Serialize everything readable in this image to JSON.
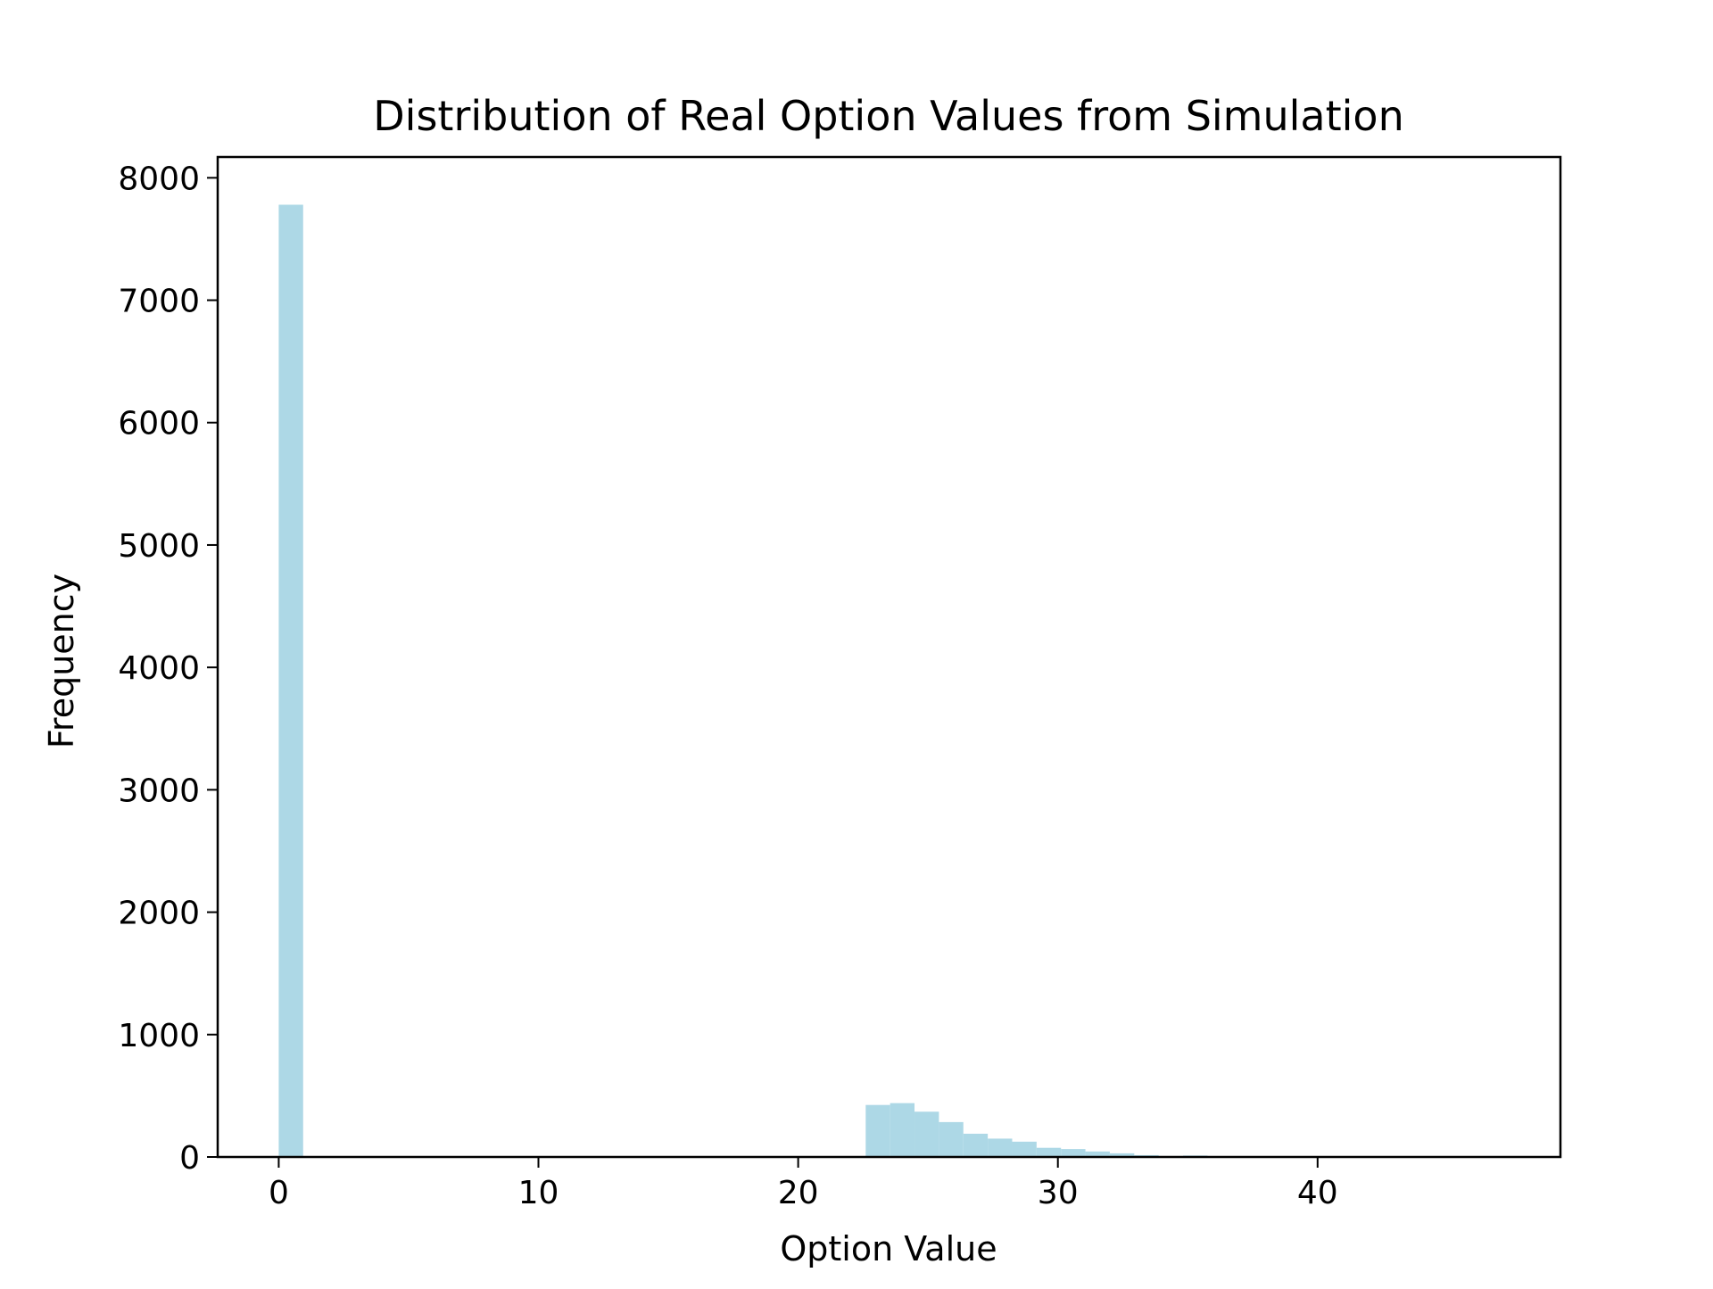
{
  "chart_data": {
    "type": "bar",
    "title": "Distribution of Real Option Values from Simulation",
    "xlabel": "Option Value",
    "ylabel": "Frequency",
    "xlim": [
      -2.35,
      49.35
    ],
    "ylim": [
      0,
      8170
    ],
    "xticks": [
      0,
      10,
      20,
      30,
      40
    ],
    "yticks": [
      0,
      1000,
      2000,
      3000,
      4000,
      5000,
      6000,
      7000,
      8000
    ],
    "bar_color": "#add8e6",
    "grid": false,
    "legend": "none",
    "bins": [
      {
        "x0": 0.0,
        "x1": 0.94,
        "value": 7780
      },
      {
        "x0": 22.6,
        "x1": 23.54,
        "value": 425
      },
      {
        "x0": 23.54,
        "x1": 24.48,
        "value": 440
      },
      {
        "x0": 24.48,
        "x1": 25.42,
        "value": 370
      },
      {
        "x0": 25.42,
        "x1": 26.36,
        "value": 285
      },
      {
        "x0": 26.36,
        "x1": 27.3,
        "value": 190
      },
      {
        "x0": 27.3,
        "x1": 28.24,
        "value": 150
      },
      {
        "x0": 28.24,
        "x1": 29.18,
        "value": 125
      },
      {
        "x0": 29.18,
        "x1": 30.12,
        "value": 75
      },
      {
        "x0": 30.12,
        "x1": 31.06,
        "value": 65
      },
      {
        "x0": 31.06,
        "x1": 32.0,
        "value": 45
      },
      {
        "x0": 32.0,
        "x1": 32.94,
        "value": 30
      },
      {
        "x0": 32.94,
        "x1": 33.88,
        "value": 15
      },
      {
        "x0": 33.88,
        "x1": 34.82,
        "value": 8
      },
      {
        "x0": 34.82,
        "x1": 35.76,
        "value": 12
      },
      {
        "x0": 35.76,
        "x1": 36.7,
        "value": 4
      },
      {
        "x0": 36.7,
        "x1": 37.64,
        "value": 3
      },
      {
        "x0": 37.64,
        "x1": 38.58,
        "value": 2
      },
      {
        "x0": 38.58,
        "x1": 39.52,
        "value": 1
      }
    ]
  }
}
